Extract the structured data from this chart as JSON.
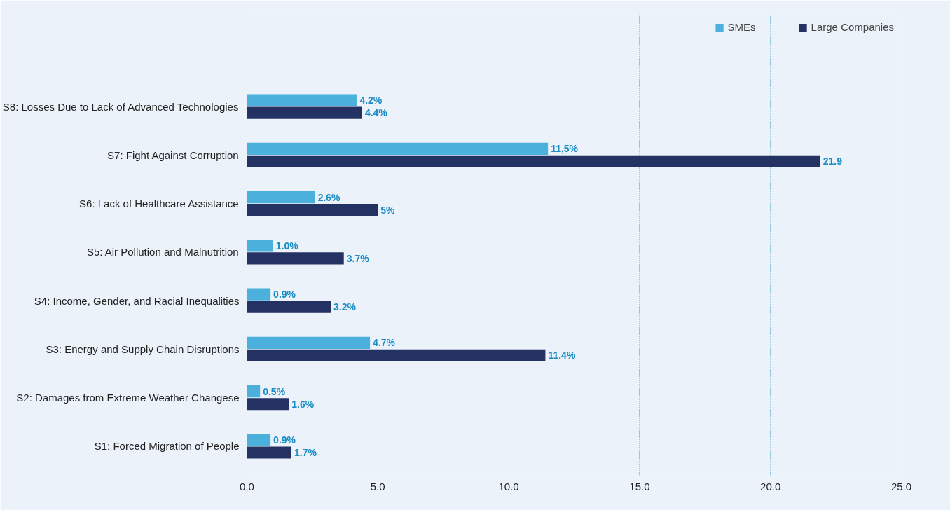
{
  "chart_data": {
    "type": "bar",
    "orientation": "horizontal",
    "categories": [
      "S8: Losses Due to Lack of Advanced Technologies",
      "S7: Fight Against Corruption",
      "S6: Lack of Healthcare Assistance",
      "S5: Air Pollution and Malnutrition",
      "S4: Income, Gender, and Racial Inequalities",
      "S3: Energy and Supply Chain Disruptions",
      "S2: Damages from Extreme Weather Changese",
      "S1: Forced Migration of People"
    ],
    "series": [
      {
        "name": "SMEs",
        "color": "#4bb0dc",
        "values": [
          4.2,
          11.5,
          2.6,
          1.0,
          0.9,
          4.7,
          0.5,
          0.9
        ],
        "value_labels": [
          "4.2%",
          "11,5%",
          "2.6%",
          "1.0%",
          "0.9%",
          "4.7%",
          "0.5%",
          "0.9%"
        ]
      },
      {
        "name": "Large Companies",
        "color": "#243263",
        "values": [
          4.4,
          21.9,
          5,
          3.7,
          3.2,
          11.4,
          1.6,
          1.7
        ],
        "value_labels": [
          "4.4%",
          "21.9",
          "5%",
          "3.7%",
          "3.2%",
          "11.4%",
          "1.6%",
          "1.7%"
        ]
      }
    ],
    "xlim": [
      0,
      25
    ],
    "xticks": [
      {
        "value": 0,
        "label": "0.0"
      },
      {
        "value": 5,
        "label": "5.0"
      },
      {
        "value": 10,
        "label": "10.0"
      },
      {
        "value": 15,
        "label": "15.0"
      },
      {
        "value": 20,
        "label": "20.0"
      },
      {
        "value": 25,
        "label": "25.0"
      }
    ],
    "grid": "x",
    "legend": "top right"
  }
}
